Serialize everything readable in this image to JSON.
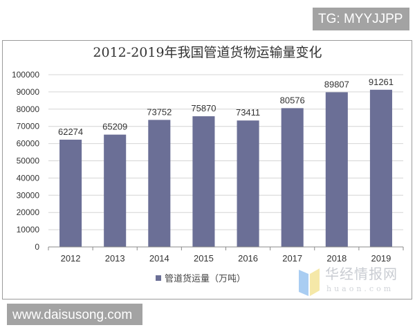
{
  "overlays": {
    "top_tag": "TG: MYYJJPP",
    "bottom_tag": "www.daisusong.com"
  },
  "watermark": {
    "cn": "华经情报网",
    "en": "huaon.com"
  },
  "chart_data": {
    "type": "bar",
    "title": "2012-2019年我国管道货物运输量变化",
    "categories": [
      "2012",
      "2013",
      "2014",
      "2015",
      "2016",
      "2017",
      "2018",
      "2019"
    ],
    "series": [
      {
        "name": "管道货运量（万吨）",
        "values": [
          62274,
          65209,
          73752,
          75870,
          73411,
          80576,
          89807,
          91261
        ]
      }
    ],
    "data_labels": [
      "62274",
      "65209",
      "73752",
      "75870",
      "73411",
      "80576",
      "89807",
      "91261"
    ],
    "ylim": [
      0,
      100000
    ],
    "yticks": [
      "0",
      "10000",
      "20000",
      "30000",
      "40000",
      "50000",
      "60000",
      "70000",
      "80000",
      "90000",
      "100000"
    ],
    "grid": true,
    "legend": "bottom",
    "colors": {
      "bar": "#6b6f96",
      "grid": "#d4d4d4",
      "axis": "#8a8a8a"
    }
  }
}
